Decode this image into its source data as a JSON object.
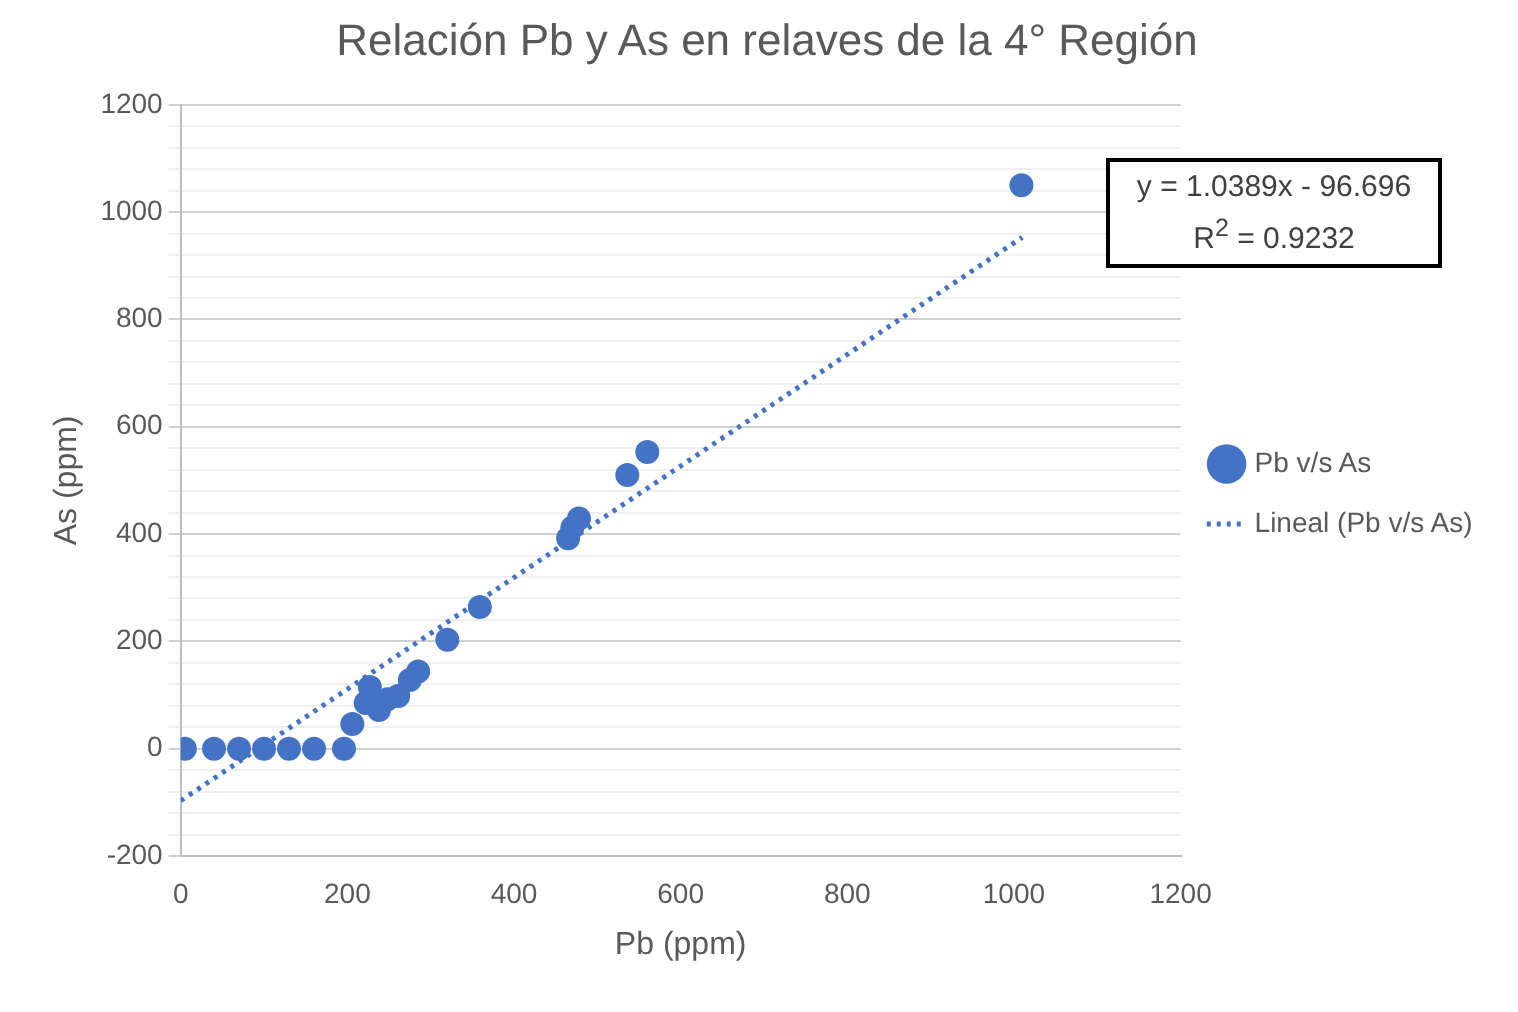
{
  "chart_data": {
    "type": "scatter",
    "title": "Relación Pb y As en relaves de la 4° Región",
    "xlabel": "Pb (ppm)",
    "ylabel": "As (ppm)",
    "xlim": [
      0,
      1200
    ],
    "xticks": [
      0,
      200,
      400,
      600,
      800,
      1000,
      1200
    ],
    "ylim": [
      -200,
      1200
    ],
    "yticks": [
      -200,
      {
        "value": -160,
        "label": null
      },
      {
        "value": -120,
        "label": null
      },
      {
        "value": -80,
        "label": null
      },
      {
        "value": -40,
        "label": null
      },
      0,
      {
        "value": 40,
        "label": null
      },
      {
        "value": 80,
        "label": null
      },
      {
        "value": 120,
        "label": null
      },
      {
        "value": 160,
        "label": null
      },
      200,
      {
        "value": 240,
        "label": null
      },
      {
        "value": 280,
        "label": null
      },
      {
        "value": 320,
        "label": null
      },
      {
        "value": 360,
        "label": null
      },
      400,
      {
        "value": 440,
        "label": null
      },
      {
        "value": 480,
        "label": null
      },
      {
        "value": 520,
        "label": null
      },
      {
        "value": 560,
        "label": null
      },
      600,
      {
        "value": 640,
        "label": null
      },
      {
        "value": 680,
        "label": null
      },
      {
        "value": 720,
        "label": null
      },
      {
        "value": 760,
        "label": null
      },
      800,
      {
        "value": 840,
        "label": null
      },
      {
        "value": 880,
        "label": null
      },
      {
        "value": 920,
        "label": null
      },
      {
        "value": 960,
        "label": null
      },
      1000,
      {
        "value": 1040,
        "label": null
      },
      {
        "value": 1080,
        "label": null
      },
      {
        "value": 1120,
        "label": null
      },
      {
        "value": 1160,
        "label": null
      },
      1200
    ],
    "grid": "y",
    "legend": "right",
    "annotations": [
      "y = 1.0389x - 96.696\nR$^{2}$ = 0.9232"
    ],
    "series": [
      {
        "name": "Pb v/s As",
        "type": "scatter",
        "color": "#4472c4",
        "marker": "circle",
        "x": [
          5,
          40,
          70,
          100,
          130,
          160,
          196,
          206,
          222,
          227,
          238,
          248,
          261,
          275,
          285,
          320,
          359,
          465,
          470,
          478,
          536,
          560,
          1009
        ],
        "values": [
          0,
          0,
          0,
          0,
          0,
          0,
          0,
          46,
          85,
          115,
          72,
          92,
          98,
          128,
          144,
          203,
          264,
          392,
          412,
          429,
          510,
          553,
          1050
        ]
      },
      {
        "name": "Lineal (Pb v/s As)",
        "type": "line",
        "color": "#4472c4",
        "marker": "none",
        "line_style": "dotted",
        "x": [
          0,
          1010
        ],
        "values": [
          -97,
          953
        ]
      }
    ]
  }
}
